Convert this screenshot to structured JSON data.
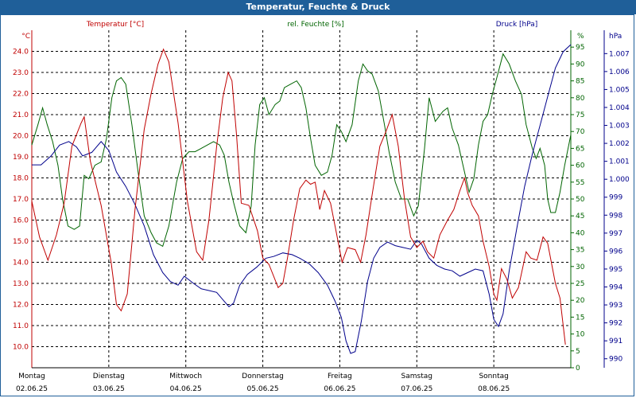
{
  "window": {
    "title": "Temperatur, Feuchte & Druck"
  },
  "colors": {
    "temperature": "#c00000",
    "humidity": "#006400",
    "pressure": "#00008b",
    "titlebar": "#1f5f99"
  },
  "chart_data": {
    "type": "line",
    "title": "Temperatur, Feuchte & Druck",
    "grid": true,
    "x_range": [
      0,
      7
    ],
    "x_ticks": [
      {
        "day": "Montag",
        "date": "02.06.25"
      },
      {
        "day": "Dienstag",
        "date": "03.06.25"
      },
      {
        "day": "Mittwoch",
        "date": "04.06.25"
      },
      {
        "day": "Donnerstag",
        "date": "05.06.25"
      },
      {
        "day": "Freitag",
        "date": "06.06.25"
      },
      {
        "day": "Samstag",
        "date": "07.06.25"
      },
      {
        "day": "Sonntag",
        "date": "08.06.25"
      }
    ],
    "axes": {
      "temperature": {
        "label": "Temperatur [°C]",
        "unit": "°C",
        "range": [
          9.0,
          25.0
        ],
        "ticks": [
          10.0,
          11.0,
          12.0,
          13.0,
          14.0,
          15.0,
          16.0,
          17.0,
          18.0,
          19.0,
          20.0,
          21.0,
          22.0,
          23.0,
          24.0
        ],
        "tick_labels": [
          "10.0",
          "11.0",
          "12.0",
          "13.0",
          "14.0",
          "15.0",
          "16.0",
          "17.0",
          "18.0",
          "19.0",
          "20.0",
          "21.0",
          "22.0",
          "23.0",
          "24.0"
        ]
      },
      "humidity": {
        "label": "rel. Feuchte [%]",
        "unit": "%",
        "range": [
          0,
          100
        ],
        "ticks": [
          0,
          5,
          10,
          15,
          20,
          25,
          30,
          35,
          40,
          45,
          50,
          55,
          60,
          65,
          70,
          75,
          80,
          85,
          90,
          95
        ],
        "tick_labels": [
          "0",
          "5",
          "10",
          "15",
          "20",
          "25",
          "30",
          "35",
          "40",
          "45",
          "50",
          "55",
          "60",
          "65",
          "70",
          "75",
          "80",
          "85",
          "90",
          "95"
        ]
      },
      "pressure": {
        "label": "Druck [hPa]",
        "unit": "hPa",
        "range": [
          989.5,
          1008.3
        ],
        "ticks": [
          990,
          991,
          992,
          993,
          994,
          995,
          996,
          997,
          998,
          999,
          1000,
          1001,
          1002,
          1003,
          1004,
          1005,
          1006,
          1007
        ],
        "tick_labels": [
          "990",
          "991",
          "992",
          "993",
          "994",
          "995",
          "996",
          "997",
          "998",
          "999",
          "1.000",
          "1.001",
          "1.002",
          "1.003",
          "1.004",
          "1.005",
          "1.006",
          "1.007"
        ]
      }
    },
    "series": [
      {
        "name": "Temperatur [°C]",
        "axis": "temperature",
        "points": [
          [
            0.0,
            16.9
          ],
          [
            0.1,
            15.2
          ],
          [
            0.21,
            14.1
          ],
          [
            0.32,
            15.3
          ],
          [
            0.42,
            16.8
          ],
          [
            0.52,
            19.5
          ],
          [
            0.64,
            20.6
          ],
          [
            0.68,
            20.9
          ],
          [
            0.76,
            18.8
          ],
          [
            0.9,
            16.7
          ],
          [
            1.03,
            14.0
          ],
          [
            1.1,
            12.0
          ],
          [
            1.16,
            11.7
          ],
          [
            1.24,
            12.5
          ],
          [
            1.34,
            16.5
          ],
          [
            1.46,
            20.3
          ],
          [
            1.55,
            22.0
          ],
          [
            1.64,
            23.4
          ],
          [
            1.71,
            24.1
          ],
          [
            1.78,
            23.5
          ],
          [
            1.9,
            20.6
          ],
          [
            2.02,
            16.9
          ],
          [
            2.14,
            14.5
          ],
          [
            2.22,
            14.1
          ],
          [
            2.3,
            16.0
          ],
          [
            2.4,
            19.5
          ],
          [
            2.48,
            21.8
          ],
          [
            2.55,
            23.0
          ],
          [
            2.6,
            22.6
          ],
          [
            2.66,
            20.0
          ],
          [
            2.72,
            16.8
          ],
          [
            2.82,
            16.7
          ],
          [
            2.93,
            15.5
          ],
          [
            3.0,
            14.2
          ],
          [
            3.08,
            13.9
          ],
          [
            3.2,
            12.8
          ],
          [
            3.26,
            13.0
          ],
          [
            3.32,
            14.2
          ],
          [
            3.4,
            16.0
          ],
          [
            3.48,
            17.5
          ],
          [
            3.56,
            17.9
          ],
          [
            3.62,
            17.7
          ],
          [
            3.68,
            17.8
          ],
          [
            3.74,
            16.5
          ],
          [
            3.8,
            17.4
          ],
          [
            3.88,
            16.8
          ],
          [
            3.96,
            15.3
          ],
          [
            4.03,
            14.0
          ],
          [
            4.1,
            14.7
          ],
          [
            4.2,
            14.6
          ],
          [
            4.27,
            14.0
          ],
          [
            4.34,
            15.3
          ],
          [
            4.42,
            17.2
          ],
          [
            4.52,
            19.5
          ],
          [
            4.6,
            20.2
          ],
          [
            4.68,
            21.0
          ],
          [
            4.76,
            19.5
          ],
          [
            4.84,
            17.0
          ],
          [
            4.92,
            15.2
          ],
          [
            5.0,
            14.7
          ],
          [
            5.08,
            15.0
          ],
          [
            5.14,
            14.5
          ],
          [
            5.22,
            14.2
          ],
          [
            5.3,
            15.3
          ],
          [
            5.4,
            16.0
          ],
          [
            5.48,
            16.5
          ],
          [
            5.56,
            17.4
          ],
          [
            5.62,
            18.0
          ],
          [
            5.66,
            17.3
          ],
          [
            5.72,
            16.7
          ],
          [
            5.8,
            16.2
          ],
          [
            5.86,
            15.0
          ],
          [
            5.94,
            13.8
          ],
          [
            6.0,
            12.5
          ],
          [
            6.04,
            12.2
          ],
          [
            6.1,
            13.7
          ],
          [
            6.17,
            13.2
          ],
          [
            6.24,
            12.3
          ],
          [
            6.32,
            12.8
          ],
          [
            6.42,
            14.5
          ],
          [
            6.48,
            14.2
          ],
          [
            6.56,
            14.1
          ],
          [
            6.64,
            15.2
          ],
          [
            6.7,
            14.9
          ],
          [
            6.8,
            13.0
          ],
          [
            6.86,
            12.3
          ],
          [
            6.93,
            10.1
          ]
        ]
      },
      {
        "name": "rel. Feuchte [%]",
        "axis": "humidity",
        "points": [
          [
            0.0,
            66
          ],
          [
            0.08,
            72
          ],
          [
            0.14,
            77
          ],
          [
            0.2,
            72
          ],
          [
            0.27,
            67
          ],
          [
            0.34,
            60
          ],
          [
            0.4,
            50
          ],
          [
            0.47,
            42
          ],
          [
            0.55,
            41
          ],
          [
            0.62,
            42
          ],
          [
            0.68,
            57
          ],
          [
            0.74,
            56
          ],
          [
            0.82,
            60
          ],
          [
            0.9,
            61
          ],
          [
            0.97,
            68
          ],
          [
            1.04,
            80
          ],
          [
            1.1,
            85
          ],
          [
            1.16,
            86
          ],
          [
            1.22,
            84
          ],
          [
            1.3,
            72
          ],
          [
            1.38,
            58
          ],
          [
            1.46,
            45
          ],
          [
            1.55,
            40
          ],
          [
            1.62,
            37
          ],
          [
            1.7,
            36
          ],
          [
            1.78,
            42
          ],
          [
            1.88,
            55
          ],
          [
            1.96,
            62
          ],
          [
            2.04,
            64
          ],
          [
            2.12,
            64
          ],
          [
            2.2,
            65
          ],
          [
            2.28,
            66
          ],
          [
            2.36,
            67
          ],
          [
            2.44,
            66
          ],
          [
            2.5,
            63
          ],
          [
            2.56,
            55
          ],
          [
            2.62,
            49
          ],
          [
            2.7,
            42
          ],
          [
            2.78,
            40
          ],
          [
            2.85,
            48
          ],
          [
            2.9,
            66
          ],
          [
            2.96,
            78
          ],
          [
            3.02,
            80
          ],
          [
            3.08,
            75
          ],
          [
            3.16,
            78
          ],
          [
            3.22,
            79
          ],
          [
            3.28,
            83
          ],
          [
            3.36,
            84
          ],
          [
            3.44,
            85
          ],
          [
            3.5,
            83
          ],
          [
            3.56,
            77
          ],
          [
            3.62,
            68
          ],
          [
            3.68,
            60
          ],
          [
            3.76,
            57
          ],
          [
            3.84,
            58
          ],
          [
            3.9,
            63
          ],
          [
            3.96,
            72
          ],
          [
            4.02,
            70
          ],
          [
            4.08,
            67
          ],
          [
            4.16,
            72
          ],
          [
            4.24,
            85
          ],
          [
            4.3,
            90
          ],
          [
            4.36,
            88
          ],
          [
            4.42,
            87
          ],
          [
            4.5,
            82
          ],
          [
            4.58,
            72
          ],
          [
            4.64,
            64
          ],
          [
            4.72,
            55
          ],
          [
            4.8,
            50
          ],
          [
            4.88,
            50
          ],
          [
            4.96,
            45
          ],
          [
            5.02,
            48
          ],
          [
            5.1,
            65
          ],
          [
            5.16,
            80
          ],
          [
            5.24,
            73
          ],
          [
            5.34,
            76
          ],
          [
            5.4,
            77
          ],
          [
            5.46,
            71
          ],
          [
            5.54,
            66
          ],
          [
            5.62,
            58
          ],
          [
            5.68,
            52
          ],
          [
            5.74,
            56
          ],
          [
            5.8,
            66
          ],
          [
            5.86,
            73
          ],
          [
            5.92,
            75
          ],
          [
            5.98,
            81
          ],
          [
            6.04,
            86
          ],
          [
            6.12,
            93
          ],
          [
            6.2,
            90
          ],
          [
            6.28,
            85
          ],
          [
            6.36,
            81
          ],
          [
            6.42,
            72
          ],
          [
            6.5,
            65
          ],
          [
            6.55,
            62
          ],
          [
            6.6,
            65
          ],
          [
            6.66,
            60
          ],
          [
            6.7,
            50
          ],
          [
            6.74,
            46
          ],
          [
            6.8,
            46
          ],
          [
            6.86,
            52
          ],
          [
            6.92,
            60
          ],
          [
            7.0,
            69
          ]
        ]
      },
      {
        "name": "Druck [hPa]",
        "axis": "pressure",
        "points": [
          [
            0.0,
            1000.8
          ],
          [
            0.12,
            1000.8
          ],
          [
            0.25,
            1001.3
          ],
          [
            0.36,
            1001.9
          ],
          [
            0.48,
            1002.1
          ],
          [
            0.58,
            1001.8
          ],
          [
            0.66,
            1001.3
          ],
          [
            0.78,
            1001.5
          ],
          [
            0.9,
            1002.1
          ],
          [
            1.0,
            1001.6
          ],
          [
            1.1,
            1000.4
          ],
          [
            1.22,
            999.6
          ],
          [
            1.34,
            998.6
          ],
          [
            1.46,
            997.4
          ],
          [
            1.58,
            995.8
          ],
          [
            1.7,
            994.8
          ],
          [
            1.8,
            994.3
          ],
          [
            1.9,
            994.1
          ],
          [
            1.98,
            994.6
          ],
          [
            2.1,
            994.2
          ],
          [
            2.2,
            993.9
          ],
          [
            2.3,
            993.8
          ],
          [
            2.4,
            993.7
          ],
          [
            2.5,
            993.2
          ],
          [
            2.56,
            992.9
          ],
          [
            2.62,
            993.1
          ],
          [
            2.7,
            994.1
          ],
          [
            2.8,
            994.7
          ],
          [
            2.92,
            995.1
          ],
          [
            3.04,
            995.6
          ],
          [
            3.14,
            995.7
          ],
          [
            3.26,
            995.9
          ],
          [
            3.38,
            995.8
          ],
          [
            3.48,
            995.6
          ],
          [
            3.6,
            995.3
          ],
          [
            3.72,
            994.8
          ],
          [
            3.84,
            994.1
          ],
          [
            3.94,
            993.2
          ],
          [
            4.02,
            992.3
          ],
          [
            4.08,
            991.0
          ],
          [
            4.14,
            990.3
          ],
          [
            4.2,
            990.4
          ],
          [
            4.28,
            992.1
          ],
          [
            4.36,
            994.3
          ],
          [
            4.44,
            995.6
          ],
          [
            4.52,
            996.2
          ],
          [
            4.62,
            996.5
          ],
          [
            4.72,
            996.3
          ],
          [
            4.82,
            996.2
          ],
          [
            4.92,
            996.1
          ],
          [
            5.0,
            996.6
          ],
          [
            5.06,
            996.4
          ],
          [
            5.16,
            995.6
          ],
          [
            5.26,
            995.2
          ],
          [
            5.36,
            995.0
          ],
          [
            5.46,
            994.9
          ],
          [
            5.56,
            994.6
          ],
          [
            5.66,
            994.8
          ],
          [
            5.76,
            995.0
          ],
          [
            5.86,
            994.9
          ],
          [
            5.94,
            993.6
          ],
          [
            6.0,
            992.2
          ],
          [
            6.06,
            991.8
          ],
          [
            6.12,
            992.5
          ],
          [
            6.2,
            994.9
          ],
          [
            6.3,
            997.3
          ],
          [
            6.4,
            999.6
          ],
          [
            6.5,
            1001.4
          ],
          [
            6.6,
            1003.0
          ],
          [
            6.7,
            1004.6
          ],
          [
            6.8,
            1006.2
          ],
          [
            6.9,
            1007.1
          ],
          [
            7.0,
            1007.5
          ]
        ]
      }
    ]
  }
}
